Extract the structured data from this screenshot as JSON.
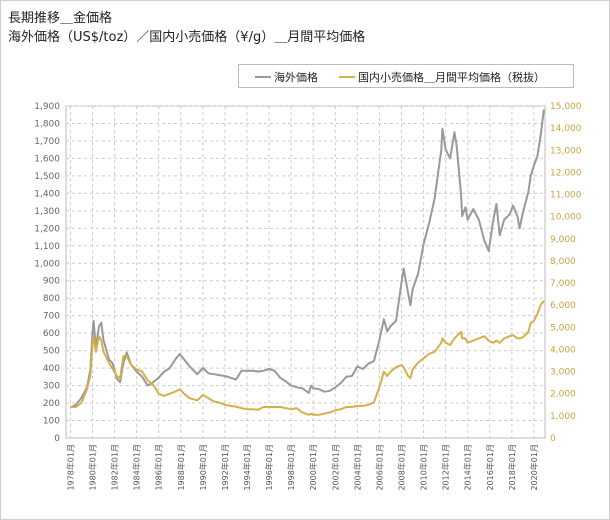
{
  "page": {
    "title_line1": "長期推移＿金価格",
    "title_line2": "海外価格（US$/toz）／国内小売価格（¥/g）＿月間平均価格"
  },
  "chart_data": {
    "type": "line",
    "legend_placement": "top-right",
    "grid": true,
    "x_tick_labels": [
      "1978年01月",
      "1980年01月",
      "1982年01月",
      "1984年01月",
      "1986年01月",
      "1988年01月",
      "1990年01月",
      "1992年01月",
      "1994年01月",
      "1996年01月",
      "1998年01月",
      "2000年01月",
      "2002年01月",
      "2004年01月",
      "2006年01月",
      "2008年01月",
      "2010年01月",
      "2012年01月",
      "2014年01月",
      "2016年01月",
      "2018年01月",
      "2020年01月"
    ],
    "x_tick_years": [
      1978,
      1980,
      1982,
      1984,
      1986,
      1988,
      1990,
      1992,
      1994,
      1996,
      1998,
      2000,
      2002,
      2004,
      2006,
      2008,
      2010,
      2012,
      2014,
      2016,
      2018,
      2020
    ],
    "y_left": {
      "range": [
        0,
        1900
      ],
      "ticks": [
        "0",
        "100",
        "200",
        "300",
        "400",
        "500",
        "600",
        "700",
        "800",
        "900",
        "1,000",
        "1,100",
        "1,200",
        "1,300",
        "1,400",
        "1,500",
        "1,600",
        "1,700",
        "1,800",
        "1,900"
      ]
    },
    "y_right": {
      "range": [
        0,
        15000
      ],
      "ticks": [
        "0",
        "1,000",
        "2,000",
        "3,000",
        "4,000",
        "5,000",
        "6,000",
        "7,000",
        "8,000",
        "9,000",
        "10,000",
        "11,000",
        "12,000",
        "13,000",
        "14,000",
        "15,000"
      ]
    },
    "series": [
      {
        "name": "海外価格",
        "axis": "left",
        "color": "#999999",
        "points": [
          [
            1978.0,
            175
          ],
          [
            1978.5,
            190
          ],
          [
            1979.0,
            230
          ],
          [
            1979.5,
            290
          ],
          [
            1979.8,
            390
          ],
          [
            1980.0,
            600
          ],
          [
            1980.1,
            670
          ],
          [
            1980.3,
            520
          ],
          [
            1980.6,
            640
          ],
          [
            1980.8,
            660
          ],
          [
            1981.0,
            560
          ],
          [
            1981.5,
            450
          ],
          [
            1981.8,
            430
          ],
          [
            1982.2,
            340
          ],
          [
            1982.5,
            320
          ],
          [
            1982.8,
            430
          ],
          [
            1983.1,
            490
          ],
          [
            1983.5,
            420
          ],
          [
            1984.0,
            380
          ],
          [
            1984.5,
            350
          ],
          [
            1985.0,
            300
          ],
          [
            1985.5,
            320
          ],
          [
            1986.0,
            345
          ],
          [
            1986.5,
            380
          ],
          [
            1987.0,
            400
          ],
          [
            1987.5,
            450
          ],
          [
            1987.9,
            480
          ],
          [
            1988.3,
            450
          ],
          [
            1988.8,
            410
          ],
          [
            1989.5,
            365
          ],
          [
            1990.0,
            400
          ],
          [
            1990.5,
            370
          ],
          [
            1991.0,
            365
          ],
          [
            1991.5,
            360
          ],
          [
            1992.0,
            355
          ],
          [
            1992.5,
            345
          ],
          [
            1993.0,
            335
          ],
          [
            1993.5,
            385
          ],
          [
            1994.0,
            385
          ],
          [
            1994.5,
            385
          ],
          [
            1995.0,
            380
          ],
          [
            1995.5,
            385
          ],
          [
            1996.0,
            395
          ],
          [
            1996.5,
            385
          ],
          [
            1997.0,
            345
          ],
          [
            1997.5,
            325
          ],
          [
            1998.0,
            300
          ],
          [
            1998.5,
            290
          ],
          [
            1999.0,
            285
          ],
          [
            1999.6,
            258
          ],
          [
            1999.8,
            300
          ],
          [
            2000.0,
            285
          ],
          [
            2000.5,
            280
          ],
          [
            2001.0,
            265
          ],
          [
            2001.5,
            270
          ],
          [
            2002.0,
            290
          ],
          [
            2002.5,
            315
          ],
          [
            2003.0,
            350
          ],
          [
            2003.5,
            355
          ],
          [
            2004.0,
            410
          ],
          [
            2004.5,
            395
          ],
          [
            2005.0,
            425
          ],
          [
            2005.5,
            440
          ],
          [
            2006.0,
            560
          ],
          [
            2006.4,
            680
          ],
          [
            2006.7,
            610
          ],
          [
            2007.0,
            640
          ],
          [
            2007.5,
            670
          ],
          [
            2008.0,
            890
          ],
          [
            2008.2,
            970
          ],
          [
            2008.6,
            830
          ],
          [
            2008.8,
            760
          ],
          [
            2009.0,
            850
          ],
          [
            2009.5,
            940
          ],
          [
            2010.0,
            1110
          ],
          [
            2010.5,
            1230
          ],
          [
            2011.0,
            1370
          ],
          [
            2011.6,
            1650
          ],
          [
            2011.7,
            1770
          ],
          [
            2012.0,
            1650
          ],
          [
            2012.4,
            1600
          ],
          [
            2012.8,
            1750
          ],
          [
            2013.0,
            1670
          ],
          [
            2013.4,
            1390
          ],
          [
            2013.5,
            1270
          ],
          [
            2013.8,
            1320
          ],
          [
            2014.0,
            1250
          ],
          [
            2014.5,
            1310
          ],
          [
            2015.0,
            1250
          ],
          [
            2015.5,
            1130
          ],
          [
            2015.9,
            1070
          ],
          [
            2016.3,
            1240
          ],
          [
            2016.6,
            1340
          ],
          [
            2016.9,
            1160
          ],
          [
            2017.3,
            1250
          ],
          [
            2017.8,
            1280
          ],
          [
            2018.1,
            1330
          ],
          [
            2018.5,
            1270
          ],
          [
            2018.7,
            1200
          ],
          [
            2019.0,
            1290
          ],
          [
            2019.5,
            1410
          ],
          [
            2019.7,
            1500
          ],
          [
            2020.0,
            1560
          ],
          [
            2020.3,
            1610
          ],
          [
            2020.6,
            1730
          ],
          [
            2020.9,
            1880
          ]
        ]
      },
      {
        "name": "国内小売価格＿月間平均価格（税抜）",
        "axis": "right",
        "color": "#d4b04c",
        "points": [
          [
            1978.0,
            1400
          ],
          [
            1978.5,
            1400
          ],
          [
            1979.0,
            1600
          ],
          [
            1979.5,
            2200
          ],
          [
            1979.8,
            2800
          ],
          [
            1980.0,
            4200
          ],
          [
            1980.1,
            4600
          ],
          [
            1980.3,
            3900
          ],
          [
            1980.6,
            4600
          ],
          [
            1980.8,
            4400
          ],
          [
            1981.0,
            3900
          ],
          [
            1981.5,
            3400
          ],
          [
            1982.2,
            2800
          ],
          [
            1982.5,
            2700
          ],
          [
            1982.8,
            3700
          ],
          [
            1983.1,
            3700
          ],
          [
            1983.5,
            3300
          ],
          [
            1984.0,
            3100
          ],
          [
            1984.5,
            3000
          ],
          [
            1985.0,
            2600
          ],
          [
            1985.5,
            2400
          ],
          [
            1986.0,
            2000
          ],
          [
            1986.5,
            1900
          ],
          [
            1987.0,
            2000
          ],
          [
            1987.5,
            2100
          ],
          [
            1987.9,
            2200
          ],
          [
            1988.3,
            2000
          ],
          [
            1988.8,
            1800
          ],
          [
            1989.5,
            1700
          ],
          [
            1990.0,
            1950
          ],
          [
            1990.5,
            1800
          ],
          [
            1991.0,
            1650
          ],
          [
            1991.5,
            1600
          ],
          [
            1992.0,
            1500
          ],
          [
            1992.5,
            1450
          ],
          [
            1993.0,
            1420
          ],
          [
            1993.5,
            1350
          ],
          [
            1994.0,
            1300
          ],
          [
            1994.5,
            1300
          ],
          [
            1995.0,
            1280
          ],
          [
            1995.5,
            1400
          ],
          [
            1996.0,
            1400
          ],
          [
            1996.5,
            1400
          ],
          [
            1997.0,
            1400
          ],
          [
            1997.5,
            1350
          ],
          [
            1998.0,
            1300
          ],
          [
            1998.5,
            1350
          ],
          [
            1999.0,
            1150
          ],
          [
            1999.6,
            1050
          ],
          [
            1999.8,
            1100
          ],
          [
            2000.0,
            1050
          ],
          [
            2000.5,
            1050
          ],
          [
            2001.0,
            1100
          ],
          [
            2001.5,
            1150
          ],
          [
            2002.0,
            1250
          ],
          [
            2002.5,
            1300
          ],
          [
            2003.0,
            1400
          ],
          [
            2003.5,
            1400
          ],
          [
            2004.0,
            1450
          ],
          [
            2004.5,
            1450
          ],
          [
            2005.0,
            1500
          ],
          [
            2005.5,
            1600
          ],
          [
            2006.0,
            2300
          ],
          [
            2006.4,
            3000
          ],
          [
            2006.7,
            2800
          ],
          [
            2007.0,
            3000
          ],
          [
            2007.5,
            3200
          ],
          [
            2008.0,
            3300
          ],
          [
            2008.2,
            3200
          ],
          [
            2008.6,
            2800
          ],
          [
            2008.8,
            2700
          ],
          [
            2009.0,
            3100
          ],
          [
            2009.5,
            3400
          ],
          [
            2010.0,
            3600
          ],
          [
            2010.5,
            3800
          ],
          [
            2011.0,
            3900
          ],
          [
            2011.6,
            4300
          ],
          [
            2011.7,
            4500
          ],
          [
            2012.0,
            4300
          ],
          [
            2012.4,
            4200
          ],
          [
            2012.8,
            4500
          ],
          [
            2013.0,
            4600
          ],
          [
            2013.4,
            4800
          ],
          [
            2013.5,
            4500
          ],
          [
            2013.8,
            4500
          ],
          [
            2014.0,
            4300
          ],
          [
            2014.5,
            4400
          ],
          [
            2015.0,
            4500
          ],
          [
            2015.5,
            4600
          ],
          [
            2015.9,
            4400
          ],
          [
            2016.3,
            4300
          ],
          [
            2016.6,
            4400
          ],
          [
            2016.9,
            4300
          ],
          [
            2017.3,
            4500
          ],
          [
            2017.8,
            4600
          ],
          [
            2018.1,
            4650
          ],
          [
            2018.5,
            4500
          ],
          [
            2018.7,
            4500
          ],
          [
            2019.0,
            4550
          ],
          [
            2019.5,
            4800
          ],
          [
            2019.7,
            5200
          ],
          [
            2020.0,
            5300
          ],
          [
            2020.3,
            5600
          ],
          [
            2020.6,
            6000
          ],
          [
            2020.9,
            6200
          ]
        ]
      }
    ]
  }
}
